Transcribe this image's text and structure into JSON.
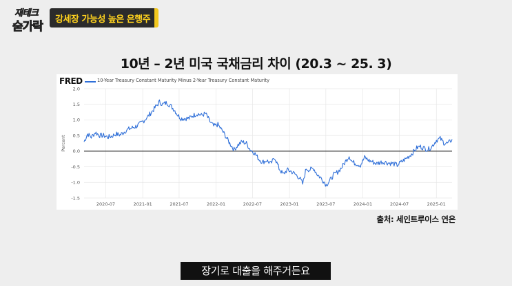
{
  "logo": {
    "line1": "재테크",
    "line2": "숟가락"
  },
  "banner": {
    "text": "강세장 가능성 높은 은행주"
  },
  "heading": "10년 – 2년 미국 국채금리 차이 (20.3 ~ 25. 3)",
  "source": "출처: 세인트루이스 연은",
  "subtitle": "장기로 대출을 해주거든요",
  "colors": {
    "line": "#2f6fd8",
    "banner": "#2b2b2b",
    "accent": "#ffd21e"
  },
  "chart_data": {
    "type": "line",
    "brand": "FRED",
    "legend": "10-Year Treasury Constant Maturity Minus 2-Year Treasury Constant Maturity",
    "ylabel": "Percent",
    "xlabel": "",
    "ylim": [
      -1.5,
      2.0
    ],
    "yticks": [
      "2.0",
      "1.5",
      "1.0",
      "0.5",
      "0.0",
      "-0.5",
      "-1.0",
      "-1.5"
    ],
    "xticks": [
      "2020-07",
      "2021-01",
      "2021-07",
      "2022-01",
      "2022-07",
      "2023-01",
      "2023-07",
      "2024-01",
      "2024-07",
      "2025-01"
    ],
    "xlim": [
      "2020-03-15",
      "2025-03-20"
    ],
    "baseline": 0,
    "grid": true,
    "series": [
      {
        "x": [
          "2020-03-15",
          "2020-04-01",
          "2020-04-20",
          "2020-05-10",
          "2020-06-01",
          "2020-06-20",
          "2020-07-10",
          "2020-08-01",
          "2020-08-20",
          "2020-09-10",
          "2020-10-01",
          "2020-10-20",
          "2020-11-10",
          "2020-12-01",
          "2020-12-20",
          "2021-01-10",
          "2021-02-01",
          "2021-02-20",
          "2021-03-10",
          "2021-03-25",
          "2021-04-10",
          "2021-05-01",
          "2021-05-20",
          "2021-06-10",
          "2021-06-25",
          "2021-07-10",
          "2021-08-01",
          "2021-08-20",
          "2021-09-10",
          "2021-10-01",
          "2021-10-20",
          "2021-11-10",
          "2021-12-01",
          "2021-12-20",
          "2022-01-10",
          "2022-02-01",
          "2022-02-20",
          "2022-03-10",
          "2022-03-31",
          "2022-04-20",
          "2022-05-10",
          "2022-06-01",
          "2022-06-20",
          "2022-07-10",
          "2022-08-01",
          "2022-08-20",
          "2022-09-10",
          "2022-10-01",
          "2022-10-20",
          "2022-11-10",
          "2022-12-01",
          "2022-12-20",
          "2023-01-10",
          "2023-02-01",
          "2023-02-20",
          "2023-03-08",
          "2023-03-25",
          "2023-04-10",
          "2023-05-01",
          "2023-05-20",
          "2023-06-10",
          "2023-07-03",
          "2023-07-20",
          "2023-08-10",
          "2023-09-01",
          "2023-09-20",
          "2023-10-10",
          "2023-10-25",
          "2023-11-10",
          "2023-12-01",
          "2023-12-20",
          "2024-01-10",
          "2024-02-01",
          "2024-02-20",
          "2024-03-10",
          "2024-04-01",
          "2024-04-20",
          "2024-05-10",
          "2024-06-01",
          "2024-06-20",
          "2024-07-10",
          "2024-08-01",
          "2024-08-20",
          "2024-09-06",
          "2024-09-25",
          "2024-10-10",
          "2024-11-01",
          "2024-11-20",
          "2024-12-10",
          "2025-01-01",
          "2025-01-20",
          "2025-02-10",
          "2025-03-01",
          "2025-03-20"
        ],
        "y": [
          0.3,
          0.55,
          0.45,
          0.6,
          0.5,
          0.5,
          0.45,
          0.48,
          0.55,
          0.52,
          0.62,
          0.7,
          0.75,
          0.8,
          0.88,
          1.0,
          1.15,
          1.3,
          1.45,
          1.58,
          1.5,
          1.55,
          1.45,
          1.3,
          1.15,
          1.05,
          1.05,
          1.05,
          1.15,
          1.2,
          1.15,
          1.2,
          0.95,
          0.8,
          0.85,
          0.65,
          0.45,
          0.25,
          0.05,
          0.2,
          0.3,
          0.25,
          0.05,
          -0.05,
          -0.25,
          -0.35,
          -0.3,
          -0.4,
          -0.2,
          -0.55,
          -0.75,
          -0.6,
          -0.65,
          -0.75,
          -0.85,
          -1.05,
          -0.55,
          -0.6,
          -0.55,
          -0.75,
          -0.88,
          -1.08,
          -0.95,
          -0.75,
          -0.65,
          -0.5,
          -0.3,
          -0.15,
          -0.35,
          -0.4,
          -0.45,
          -0.2,
          -0.3,
          -0.35,
          -0.4,
          -0.35,
          -0.35,
          -0.38,
          -0.4,
          -0.45,
          -0.35,
          -0.25,
          -0.15,
          -0.05,
          0.1,
          0.15,
          0.1,
          0.05,
          0.15,
          0.35,
          0.4,
          0.25,
          0.25,
          0.38
        ]
      }
    ]
  }
}
